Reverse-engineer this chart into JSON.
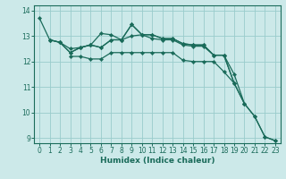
{
  "background_color": "#cce9e9",
  "grid_color": "#99cccc",
  "line_color": "#1a6b5a",
  "xlabel": "Humidex (Indice chaleur)",
  "xlim": [
    -0.5,
    23.5
  ],
  "ylim": [
    8.8,
    14.2
  ],
  "xticks": [
    0,
    1,
    2,
    3,
    4,
    5,
    6,
    7,
    8,
    9,
    10,
    11,
    12,
    13,
    14,
    15,
    16,
    17,
    18,
    19,
    20,
    21,
    22,
    23
  ],
  "yticks": [
    9,
    10,
    11,
    12,
    13,
    14
  ],
  "line1_x": [
    0,
    1,
    2,
    3,
    4,
    5,
    6,
    7,
    8,
    9,
    10,
    11,
    12,
    13,
    14,
    15,
    16,
    17,
    18,
    19
  ],
  "line1_y": [
    13.7,
    12.85,
    12.75,
    12.35,
    12.55,
    12.65,
    13.1,
    13.05,
    12.85,
    13.45,
    13.05,
    13.05,
    12.9,
    12.9,
    12.7,
    12.65,
    12.65,
    12.25,
    12.25,
    11.15
  ],
  "line2_x": [
    1,
    2,
    3,
    4,
    5,
    6,
    7,
    8,
    9,
    10,
    11,
    12,
    13,
    14,
    15,
    16,
    17,
    18,
    19,
    20,
    21,
    22,
    23
  ],
  "line2_y": [
    12.85,
    12.75,
    12.35,
    12.55,
    12.65,
    12.55,
    12.85,
    12.85,
    13.45,
    13.05,
    13.05,
    12.9,
    12.9,
    12.7,
    12.65,
    12.65,
    12.25,
    12.25,
    11.15,
    10.35,
    9.85,
    9.05,
    8.9
  ],
  "line3_x": [
    1,
    2,
    3,
    4,
    5,
    6,
    7,
    8,
    9,
    10,
    11,
    12,
    13,
    14,
    15,
    16,
    17,
    18,
    19,
    20
  ],
  "line3_y": [
    12.85,
    12.75,
    12.5,
    12.55,
    12.65,
    12.55,
    12.85,
    12.85,
    13.0,
    13.05,
    12.9,
    12.85,
    12.85,
    12.65,
    12.6,
    12.6,
    12.25,
    12.25,
    11.5,
    10.35
  ],
  "line4_x": [
    3,
    4,
    5,
    6,
    7,
    8,
    9,
    10,
    11,
    12,
    13,
    14,
    15,
    16,
    17,
    18,
    19,
    20,
    21,
    22,
    23
  ],
  "line4_y": [
    12.2,
    12.2,
    12.1,
    12.1,
    12.35,
    12.35,
    12.35,
    12.35,
    12.35,
    12.35,
    12.35,
    12.05,
    12.0,
    12.0,
    12.0,
    11.6,
    11.15,
    10.35,
    9.85,
    9.05,
    8.9
  ]
}
